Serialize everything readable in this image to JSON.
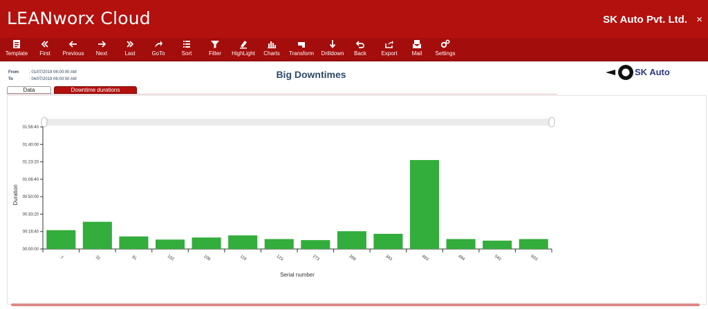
{
  "app": {
    "title": "LEANworx Cloud",
    "company": "SK Auto Pvt. Ltd.",
    "close": "×"
  },
  "toolbar": [
    {
      "label": "Template",
      "icon": "template-icon"
    },
    {
      "label": "First",
      "icon": "first-icon"
    },
    {
      "label": "Previous",
      "icon": "previous-icon"
    },
    {
      "label": "Next",
      "icon": "next-icon"
    },
    {
      "label": "Last",
      "icon": "last-icon"
    },
    {
      "label": "GoTo",
      "icon": "goto-icon"
    },
    {
      "label": "Sort",
      "icon": "sort-icon"
    },
    {
      "label": "Filter",
      "icon": "filter-icon"
    },
    {
      "label": "HighLight",
      "icon": "highlight-icon"
    },
    {
      "label": "Charts",
      "icon": "charts-icon"
    },
    {
      "label": "Transform",
      "icon": "transform-icon"
    },
    {
      "label": "Drilldown",
      "icon": "drilldown-icon"
    },
    {
      "label": "Back",
      "icon": "back-icon"
    },
    {
      "label": "Export",
      "icon": "export-icon"
    },
    {
      "label": "Mail",
      "icon": "mail-icon"
    },
    {
      "label": "Settings",
      "icon": "settings-icon"
    }
  ],
  "info": {
    "from_label": "From",
    "from_value": ": 01/07/2019 06:00:00 AM",
    "to_label": "To",
    "to_value": ": 04/07/2019 06:00:00 AM"
  },
  "page": {
    "title": "Big Downtimes"
  },
  "logo": {
    "text": "SK Auto"
  },
  "tabs": {
    "data": "Data",
    "downtime": "Downtime durations"
  },
  "colors": {
    "header": "#b3110e",
    "toolbar": "#a30d0b",
    "bar": "#33ad3c",
    "title": "#2d4a69"
  },
  "chart_data": {
    "type": "bar",
    "title": "",
    "xlabel": "Serial number",
    "ylabel": "Duration",
    "categories": [
      "7",
      "31",
      "91",
      "102",
      "109",
      "116",
      "123",
      "273",
      "289",
      "343",
      "493",
      "494",
      "542",
      "603"
    ],
    "values": [
      1080,
      1560,
      720,
      540,
      660,
      780,
      570,
      510,
      1020,
      870,
      5100,
      570,
      480,
      570
    ],
    "value_unit": "seconds",
    "yticks": [
      {
        "value": 0,
        "label": "00:00:00"
      },
      {
        "value": 1000,
        "label": "00:16:40"
      },
      {
        "value": 2000,
        "label": "00:33:20"
      },
      {
        "value": 3000,
        "label": "00:50:00"
      },
      {
        "value": 4000,
        "label": "01:06:40"
      },
      {
        "value": 5000,
        "label": "01:23:20"
      },
      {
        "value": 6000,
        "label": "01:40:00"
      },
      {
        "value": 7000,
        "label": "01:56:40"
      }
    ],
    "ylim": [
      0,
      7000
    ],
    "grid": false,
    "legend": "none"
  }
}
